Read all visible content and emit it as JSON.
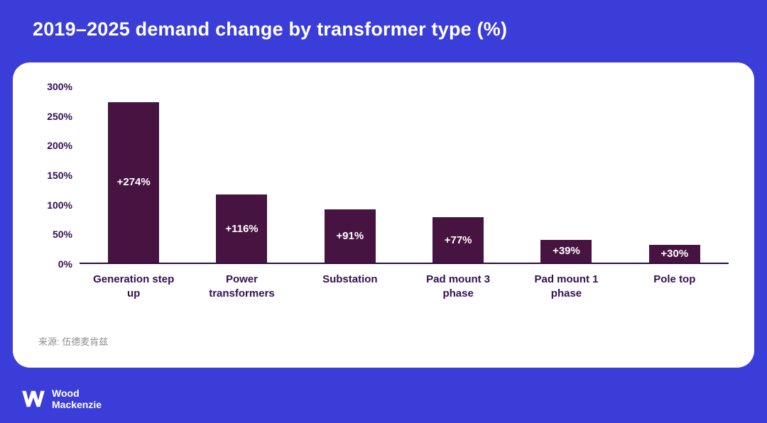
{
  "header": {
    "title": "2019–2025 demand change by transformer type (%)"
  },
  "chart_data": {
    "type": "bar",
    "title": "2019–2025 demand change by transformer type (%)",
    "categories": [
      "Generation step up",
      "Power transformers",
      "Substation",
      "Pad mount 3 phase",
      "Pad mount 1 phase",
      "Pole top"
    ],
    "values": [
      274,
      116,
      91,
      77,
      39,
      30
    ],
    "value_labels": [
      "+274%",
      "+116%",
      "+91%",
      "+77%",
      "+39%",
      "+30%"
    ],
    "xlabel": "",
    "ylabel": "",
    "ylim": [
      0,
      300
    ],
    "yticks": [
      0,
      50,
      100,
      150,
      200,
      250,
      300
    ],
    "ytick_suffix": "%",
    "grid": false,
    "legend": false,
    "bar_color": "#471341",
    "value_label_color": "#ffffff",
    "axis_text_color": "#341053"
  },
  "source": "来源: 伍德麦肯兹",
  "logo": {
    "line1": "Wood",
    "line2": "Mackenzie"
  },
  "colors": {
    "page_background": "#3b3dd9",
    "card_background": "#ffffff",
    "title_text": "#ffffff"
  }
}
